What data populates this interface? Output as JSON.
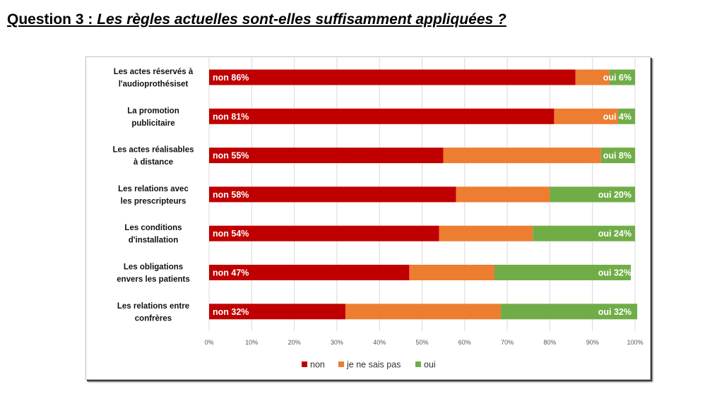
{
  "heading": {
    "prefix": "Question 3 : ",
    "question": "Les règles actuelles sont-elles suffisamment appliquées ?"
  },
  "chart_data": {
    "type": "bar",
    "orientation": "horizontal",
    "stacked": true,
    "categories": [
      [
        "Les actes réservés à",
        "l'audioprothésiset"
      ],
      [
        "La promotion",
        "publicitaire"
      ],
      [
        "Les actes réalisables",
        "à distance"
      ],
      [
        "Les relations avec",
        "les prescripteurs"
      ],
      [
        "Les conditions",
        "d'installation"
      ],
      [
        "Les obligations",
        "envers les patients"
      ],
      [
        "Les relations entre",
        "confrères"
      ]
    ],
    "series": [
      {
        "name": "non",
        "color": "#c00000",
        "values": [
          86,
          81,
          55,
          58,
          54,
          47,
          32
        ],
        "labels": [
          "non 86%",
          "non 81%",
          "non 55%",
          "non 58%",
          "non 54%",
          "non 47%",
          "non 32%"
        ]
      },
      {
        "name": "je ne sais pas",
        "color": "#ed7d31",
        "values": [
          8,
          15,
          37,
          22,
          22,
          20,
          36.5
        ],
        "labels": []
      },
      {
        "name": "oui",
        "color": "#70ad47",
        "values": [
          6,
          4,
          8,
          20,
          24,
          32,
          32
        ],
        "labels": [
          "oui 6%",
          "oui 4%",
          "oui 8%",
          "oui 20%",
          "oui 24%",
          "oui 32%",
          "oui 32%"
        ]
      }
    ],
    "xlim": [
      0,
      100
    ],
    "xticks": [
      "0%",
      "10%",
      "20%",
      "30%",
      "40%",
      "50%",
      "60%",
      "70%",
      "80%",
      "90%",
      "100%"
    ],
    "grid": true,
    "legend_position": "bottom"
  }
}
